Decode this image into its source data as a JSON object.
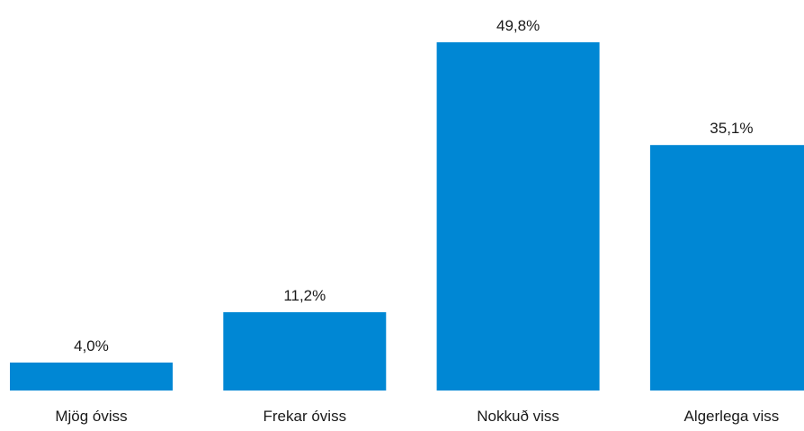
{
  "chart_data": {
    "type": "bar",
    "categories": [
      "Mjög óviss",
      "Frekar óviss",
      "Nokkuð viss",
      "Algerlega viss"
    ],
    "values": [
      4.0,
      11.2,
      49.8,
      35.1
    ],
    "data_labels": [
      "4,0%",
      "11,2%",
      "49,8%",
      "35,1%"
    ],
    "title": "",
    "xlabel": "",
    "ylabel": "",
    "ylim": [
      0,
      50
    ],
    "grid": false,
    "legend": "none",
    "bar_color": "#0087d4"
  }
}
